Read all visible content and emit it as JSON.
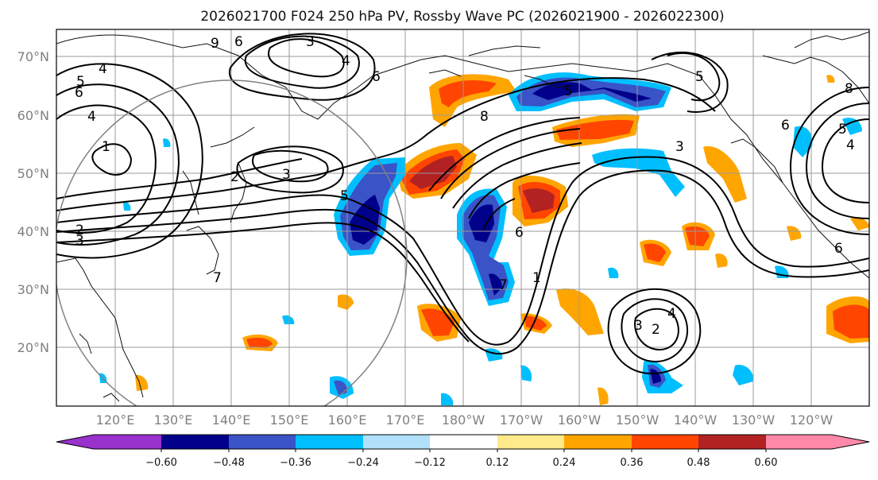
{
  "title": "2026021700 F024 250 hPa PV, Rossby Wave PC (2026021900 - 2026022300)",
  "lat_labels": [
    "70°N",
    "60°N",
    "50°N",
    "40°N",
    "30°N",
    "20°N"
  ],
  "lon_labels": [
    "120°E",
    "130°E",
    "140°E",
    "150°E",
    "160°E",
    "170°E",
    "180°W",
    "170°W",
    "160°W",
    "150°W",
    "140°W",
    "130°W",
    "120°W"
  ],
  "pv_contour_labels": [
    "4",
    "5",
    "6",
    "4",
    "1",
    "2",
    "3",
    "3",
    "5",
    "3",
    "2",
    "8",
    "4",
    "6",
    "9",
    "6",
    "5",
    "3",
    "5",
    "4",
    "3",
    "2",
    "1",
    "6",
    "7",
    "6",
    "5",
    "4",
    "8",
    "6",
    "7"
  ],
  "colorbar": {
    "tick_labels": [
      "−0.60",
      "−0.48",
      "−0.36",
      "−0.24",
      "−0.12",
      "0.12",
      "0.24",
      "0.36",
      "0.48",
      "0.60"
    ],
    "colors": [
      "#9932cc",
      "#00008b",
      "#3a53c6",
      "#00bfff",
      "#b0e0fa",
      "#ffffff",
      "#ffe98a",
      "#ffa500",
      "#ff4500",
      "#b22222",
      "#ff89a8"
    ]
  },
  "chart_data": {
    "type": "map",
    "projection": "PlateCarree centered 180",
    "lon_range": [
      110,
      -110
    ],
    "lat_range": [
      10,
      75
    ],
    "field": "250 hPa potential vorticity (contours) with Rossby wave PC anomaly shading",
    "contour_levels_labeled": [
      1,
      2,
      3,
      4,
      5,
      6,
      7,
      8,
      9
    ],
    "shading_levels": [
      -0.6,
      -0.48,
      -0.36,
      -0.24,
      -0.12,
      0.12,
      0.24,
      0.36,
      0.48,
      0.6
    ]
  }
}
